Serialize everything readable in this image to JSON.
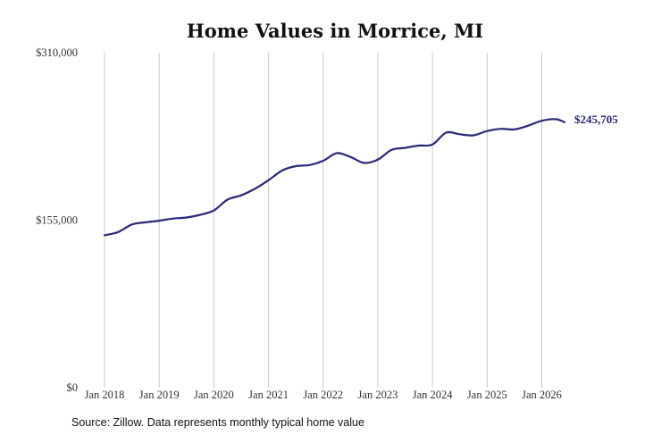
{
  "chart_data": {
    "type": "line",
    "title": "Home Values in Morrice, MI",
    "source": "Source: Zillow. Data represents monthly typical home value",
    "ylim": [
      0,
      310000
    ],
    "y_ticks": [
      "$310,000",
      "$155,000",
      "$0"
    ],
    "y_tick_values": [
      310000,
      155000,
      0
    ],
    "x_ticks": [
      "Jan 2018",
      "Jan 2019",
      "Jan 2020",
      "Jan 2021",
      "Jan 2022",
      "Jan 2023",
      "Jan 2024",
      "Jan 2025",
      "Jan 2026"
    ],
    "x_tick_values": [
      "2018-01",
      "2019-01",
      "2020-01",
      "2021-01",
      "2022-01",
      "2023-01",
      "2024-01",
      "2025-01",
      "2026-01"
    ],
    "xlim": [
      "2018-01",
      "2026-06"
    ],
    "grid": "vertical",
    "line_color": "#2b2878",
    "end_label": "$245,705",
    "series": [
      {
        "points": [
          [
            "2018-01",
            141000
          ],
          [
            "2018-04",
            144000
          ],
          [
            "2018-07",
            151000
          ],
          [
            "2018-10",
            153000
          ],
          [
            "2019-01",
            154500
          ],
          [
            "2019-04",
            156500
          ],
          [
            "2019-07",
            157500
          ],
          [
            "2019-10",
            160000
          ],
          [
            "2020-01",
            164000
          ],
          [
            "2020-04",
            174000
          ],
          [
            "2020-07",
            178000
          ],
          [
            "2020-10",
            184000
          ],
          [
            "2021-01",
            192000
          ],
          [
            "2021-04",
            201000
          ],
          [
            "2021-07",
            205000
          ],
          [
            "2021-10",
            206000
          ],
          [
            "2022-01",
            210000
          ],
          [
            "2022-04",
            217000
          ],
          [
            "2022-07",
            213500
          ],
          [
            "2022-10",
            208000
          ],
          [
            "2023-01",
            211000
          ],
          [
            "2023-04",
            220000
          ],
          [
            "2023-07",
            222000
          ],
          [
            "2023-10",
            224000
          ],
          [
            "2024-01",
            225000
          ],
          [
            "2024-04",
            236000
          ],
          [
            "2024-07",
            234500
          ],
          [
            "2024-10",
            233500
          ],
          [
            "2025-01",
            237500
          ],
          [
            "2025-04",
            239500
          ],
          [
            "2025-07",
            239000
          ],
          [
            "2025-10",
            242500
          ],
          [
            "2026-01",
            247000
          ],
          [
            "2026-04",
            248500
          ],
          [
            "2026-06",
            245705
          ]
        ]
      }
    ]
  }
}
